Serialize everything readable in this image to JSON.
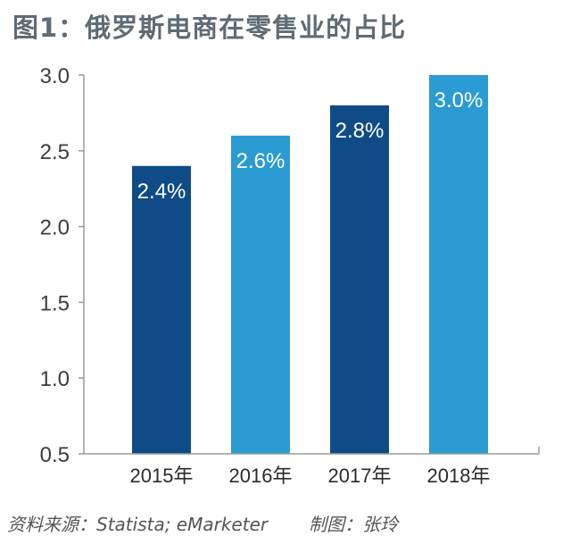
{
  "chart_data": {
    "type": "bar",
    "title": "图1：俄罗斯电商在零售业的占比",
    "categories": [
      "2015年",
      "2016年",
      "2017年",
      "2018年"
    ],
    "values": [
      2.4,
      2.6,
      2.8,
      3.0
    ],
    "value_labels": [
      "2.4%",
      "2.6%",
      "2.8%",
      "3.0%"
    ],
    "y_ticks": [
      "0.5",
      "1.0",
      "1.5",
      "2.0",
      "2.5",
      "3.0"
    ],
    "ylim": [
      0.5,
      3.0
    ],
    "grid": false,
    "bar_colors": [
      "#0f4c87",
      "#2b9bd3",
      "#0f4c87",
      "#2b9bd3"
    ],
    "axis_color": "#9a9a9a"
  },
  "footer": {
    "source": "资料来源：Statista; eMarketer",
    "author": "制图：张玲"
  }
}
